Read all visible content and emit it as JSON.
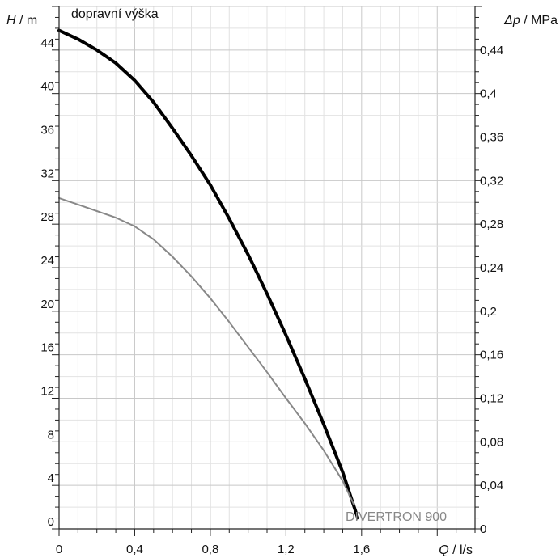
{
  "chart_data": {
    "type": "line",
    "title": "dopravní výška",
    "left_axis": {
      "symbol": "H",
      "unit": " / m",
      "range": [
        0,
        48
      ],
      "ticks": [
        0,
        4,
        8,
        12,
        16,
        20,
        24,
        28,
        32,
        36,
        40,
        44
      ],
      "tick_labels": [
        "0",
        "4",
        "8",
        "12",
        "16",
        "20",
        "24",
        "28",
        "32",
        "36",
        "40",
        "44"
      ]
    },
    "right_axis": {
      "symbol": "Δp",
      "unit": " / MPa",
      "range": [
        0,
        0.48
      ],
      "ticks": [
        0,
        0.04,
        0.08,
        0.12,
        0.16,
        0.2,
        0.24,
        0.28,
        0.32,
        0.36,
        0.4,
        0.44
      ],
      "tick_labels": [
        "0",
        "0,04",
        "0,08",
        "0,12",
        "0,16",
        "0,2",
        "0,24",
        "0,28",
        "0,32",
        "0,36",
        "0,4",
        "0,44"
      ]
    },
    "x_axis": {
      "symbol": "Q",
      "unit": " / l/s",
      "range": [
        0,
        2.2
      ],
      "ticks": [
        0,
        0.4,
        0.8,
        1.2,
        1.6
      ],
      "tick_labels": [
        "0",
        "0,4",
        "0,8",
        "1,2",
        "1,6"
      ]
    },
    "grid": true,
    "annotation": "DIVERTRON 900",
    "series": [
      {
        "name": "DIVERTRON 900",
        "color": "#000000",
        "width": 4,
        "x": [
          0,
          0.1,
          0.2,
          0.3,
          0.4,
          0.5,
          0.6,
          0.7,
          0.8,
          0.9,
          1.0,
          1.1,
          1.2,
          1.3,
          1.4,
          1.5,
          1.58
        ],
        "y": [
          45.8,
          45.0,
          44.0,
          42.8,
          41.2,
          39.2,
          36.8,
          34.3,
          31.6,
          28.5,
          25.2,
          21.6,
          17.8,
          13.8,
          9.6,
          5.2,
          1.0
        ]
      },
      {
        "color": "#888888",
        "width": 2,
        "x": [
          0,
          0.1,
          0.2,
          0.3,
          0.4,
          0.5,
          0.6,
          0.7,
          0.8,
          0.9,
          1.0,
          1.1,
          1.2,
          1.3,
          1.4,
          1.5,
          1.56
        ],
        "y": [
          30.4,
          29.8,
          29.2,
          28.6,
          27.8,
          26.6,
          25.0,
          23.2,
          21.2,
          19.0,
          16.7,
          14.4,
          12.0,
          9.7,
          7.2,
          4.4,
          2.2
        ]
      }
    ]
  }
}
